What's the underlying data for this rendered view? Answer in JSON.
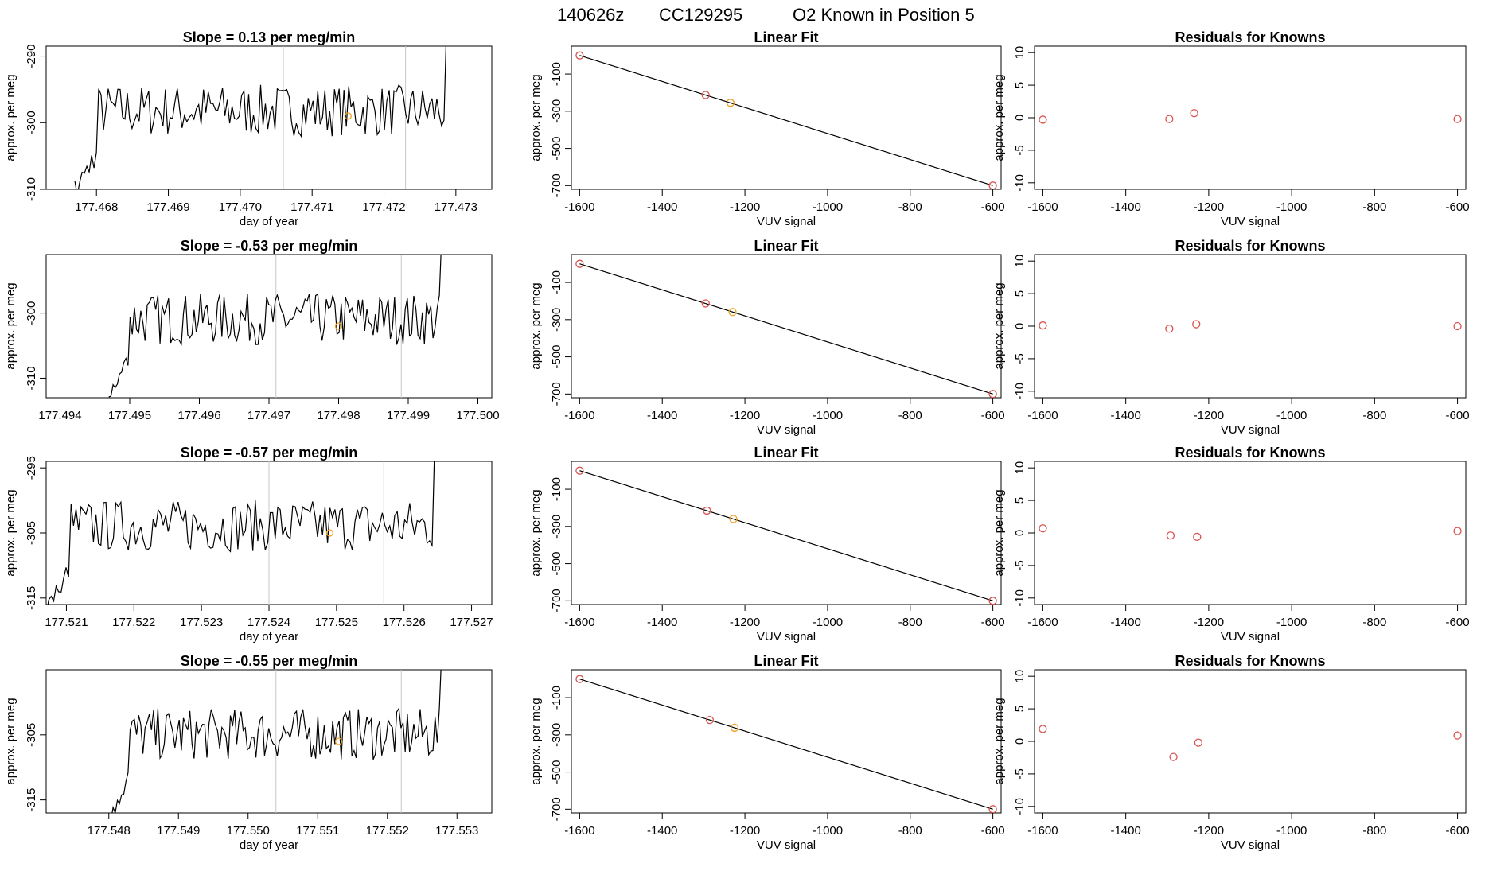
{
  "figure": {
    "title_parts": [
      "140626z",
      "CC129295",
      "O2 Known in Position  5"
    ]
  },
  "colors": {
    "line": "#000000",
    "marker_red": "#d9534f",
    "marker_orange": "#f0a020",
    "vline": "#c8c8c8"
  },
  "chart_data": [
    {
      "type": "line",
      "row": 1,
      "panel": "timeseries",
      "title": "Slope =  0.13  per meg/min",
      "xlabel": "day of year",
      "ylabel": "approx. per meg",
      "xlim": [
        177.4673,
        177.4735
      ],
      "ylim": [
        -310,
        -288.5
      ],
      "xticks": [
        177.468,
        177.469,
        177.47,
        177.471,
        177.472,
        177.473
      ],
      "xtick_labels": [
        "177.468",
        "177.469",
        "177.470",
        "177.471",
        "177.472",
        "177.473"
      ],
      "yticks": [
        -310,
        -300,
        -290
      ],
      "ytick_labels": [
        "-310",
        "-300",
        "-290"
      ],
      "vlines": [
        177.4706,
        177.4723
      ],
      "series_start": 177.4677,
      "series_end": 177.473,
      "highlight": {
        "x": 177.4715,
        "y": -299
      }
    },
    {
      "type": "scatter",
      "row": 1,
      "panel": "fit",
      "title": "Linear Fit",
      "xlabel": "VUV signal",
      "ylabel": "approx. per meg",
      "xlim": [
        -1620,
        -580
      ],
      "ylim": [
        -720,
        50
      ],
      "xticks": [
        -1600,
        -1400,
        -1200,
        -1000,
        -800,
        -600
      ],
      "xtick_labels": [
        "-1600",
        "-1400",
        "-1200",
        "-1000",
        "-800",
        "-600"
      ],
      "yticks": [
        -100,
        -300,
        -500,
        -700
      ],
      "ytick_labels": [
        "-100",
        "-300",
        "-500",
        "-700"
      ],
      "line": [
        [
          -1600,
          0
        ],
        [
          -600,
          -700
        ]
      ],
      "points": [
        {
          "x": -1600,
          "y": 0,
          "color": "red"
        },
        {
          "x": -1295,
          "y": -213,
          "color": "red"
        },
        {
          "x": -1235,
          "y": -255,
          "color": "orange"
        },
        {
          "x": -600,
          "y": -700,
          "color": "red"
        }
      ]
    },
    {
      "type": "scatter",
      "row": 1,
      "panel": "residuals",
      "title": "Residuals for Knowns",
      "xlabel": "VUV signal",
      "ylabel": "approx. per meg",
      "xlim": [
        -1620,
        -580
      ],
      "ylim": [
        -11,
        11
      ],
      "xticks": [
        -1600,
        -1400,
        -1200,
        -1000,
        -800,
        -600
      ],
      "xtick_labels": [
        "-1600",
        "-1400",
        "-1200",
        "-1000",
        "-800",
        "-600"
      ],
      "yticks": [
        -10,
        -5,
        0,
        5,
        10
      ],
      "ytick_labels": [
        "-10",
        "-5",
        "0",
        "5",
        "10"
      ],
      "points": [
        {
          "x": -1600,
          "y": -0.3,
          "color": "red"
        },
        {
          "x": -1295,
          "y": -0.2,
          "color": "red"
        },
        {
          "x": -1235,
          "y": 0.7,
          "color": "red"
        },
        {
          "x": -600,
          "y": -0.2,
          "color": "red"
        }
      ]
    },
    {
      "type": "line",
      "row": 2,
      "panel": "timeseries",
      "title": "Slope =  -0.53  per meg/min",
      "xlabel": "",
      "ylabel": "approx. per meg",
      "xlim": [
        177.4938,
        177.5002
      ],
      "ylim": [
        -313,
        -291
      ],
      "xticks": [
        177.494,
        177.495,
        177.496,
        177.497,
        177.498,
        177.499,
        177.5
      ],
      "xtick_labels": [
        "177.494",
        "177.495",
        "177.496",
        "177.497",
        "177.498",
        "177.499",
        "177.500"
      ],
      "yticks": [
        -310,
        -300
      ],
      "ytick_labels": [
        "-310",
        "-300"
      ],
      "vlines": [
        177.4971,
        177.4989
      ],
      "series_start": 177.4947,
      "series_end": 177.4996,
      "highlight": {
        "x": 177.498,
        "y": -302
      }
    },
    {
      "type": "scatter",
      "row": 2,
      "panel": "fit",
      "title": "Linear Fit",
      "xlabel": "VUV signal",
      "ylabel": "approx. per meg",
      "xlim": [
        -1620,
        -580
      ],
      "ylim": [
        -720,
        50
      ],
      "xticks": [
        -1600,
        -1400,
        -1200,
        -1000,
        -800,
        -600
      ],
      "xtick_labels": [
        "-1600",
        "-1400",
        "-1200",
        "-1000",
        "-800",
        "-600"
      ],
      "yticks": [
        -100,
        -300,
        -500,
        -700
      ],
      "ytick_labels": [
        "-100",
        "-300",
        "-500",
        "-700"
      ],
      "line": [
        [
          -1600,
          0
        ],
        [
          -600,
          -700
        ]
      ],
      "points": [
        {
          "x": -1600,
          "y": 0,
          "color": "red"
        },
        {
          "x": -1295,
          "y": -213,
          "color": "red"
        },
        {
          "x": -1230,
          "y": -259,
          "color": "orange"
        },
        {
          "x": -600,
          "y": -700,
          "color": "red"
        }
      ]
    },
    {
      "type": "scatter",
      "row": 2,
      "panel": "residuals",
      "title": "Residuals for Knowns",
      "xlabel": "VUV signal",
      "ylabel": "approx. per meg",
      "xlim": [
        -1620,
        -580
      ],
      "ylim": [
        -11,
        11
      ],
      "xticks": [
        -1600,
        -1400,
        -1200,
        -1000,
        -800,
        -600
      ],
      "xtick_labels": [
        "-1600",
        "-1400",
        "-1200",
        "-1000",
        "-800",
        "-600"
      ],
      "yticks": [
        -10,
        -5,
        0,
        5,
        10
      ],
      "ytick_labels": [
        "-10",
        "-5",
        "0",
        "5",
        "10"
      ],
      "points": [
        {
          "x": -1600,
          "y": 0.1,
          "color": "red"
        },
        {
          "x": -1295,
          "y": -0.4,
          "color": "red"
        },
        {
          "x": -1230,
          "y": 0.3,
          "color": "red"
        },
        {
          "x": -600,
          "y": 0.0,
          "color": "red"
        }
      ]
    },
    {
      "type": "line",
      "row": 3,
      "panel": "timeseries",
      "title": "Slope =  -0.57  per meg/min",
      "xlabel": "day of year",
      "ylabel": "approx. per meg",
      "xlim": [
        177.5207,
        177.5273
      ],
      "ylim": [
        -316,
        -294
      ],
      "xticks": [
        177.521,
        177.522,
        177.523,
        177.524,
        177.525,
        177.526,
        177.527
      ],
      "xtick_labels": [
        "177.521",
        "177.522",
        "177.523",
        "177.524",
        "177.525",
        "177.526",
        "177.527"
      ],
      "yticks": [
        -315,
        -305,
        -295
      ],
      "ytick_labels": [
        "-315",
        "-305",
        "-295"
      ],
      "vlines": [
        177.524,
        177.5257
      ],
      "series_start": 177.5207,
      "series_end": 177.5266,
      "highlight": {
        "x": 177.5249,
        "y": -305
      }
    },
    {
      "type": "scatter",
      "row": 3,
      "panel": "fit",
      "title": "Linear Fit",
      "xlabel": "VUV signal",
      "ylabel": "approx. per meg",
      "xlim": [
        -1620,
        -580
      ],
      "ylim": [
        -720,
        50
      ],
      "xticks": [
        -1600,
        -1400,
        -1200,
        -1000,
        -800,
        -600
      ],
      "xtick_labels": [
        "-1600",
        "-1400",
        "-1200",
        "-1000",
        "-800",
        "-600"
      ],
      "yticks": [
        -100,
        -300,
        -500,
        -700
      ],
      "ytick_labels": [
        "-100",
        "-300",
        "-500",
        "-700"
      ],
      "line": [
        [
          -1600,
          0
        ],
        [
          -600,
          -700
        ]
      ],
      "points": [
        {
          "x": -1600,
          "y": 0,
          "color": "red"
        },
        {
          "x": -1292,
          "y": -215,
          "color": "red"
        },
        {
          "x": -1228,
          "y": -260,
          "color": "orange"
        },
        {
          "x": -600,
          "y": -700,
          "color": "red"
        }
      ]
    },
    {
      "type": "scatter",
      "row": 3,
      "panel": "residuals",
      "title": "Residuals for Knowns",
      "xlabel": "VUV signal",
      "ylabel": "approx. per meg",
      "xlim": [
        -1620,
        -580
      ],
      "ylim": [
        -11,
        11
      ],
      "xticks": [
        -1600,
        -1400,
        -1200,
        -1000,
        -800,
        -600
      ],
      "xtick_labels": [
        "-1600",
        "-1400",
        "-1200",
        "-1000",
        "-800",
        "-600"
      ],
      "yticks": [
        -10,
        -5,
        0,
        5,
        10
      ],
      "ytick_labels": [
        "-10",
        "-5",
        "0",
        "5",
        "10"
      ],
      "points": [
        {
          "x": -1600,
          "y": 0.7,
          "color": "red"
        },
        {
          "x": -1292,
          "y": -0.4,
          "color": "red"
        },
        {
          "x": -1228,
          "y": -0.6,
          "color": "red"
        },
        {
          "x": -600,
          "y": 0.3,
          "color": "red"
        }
      ]
    },
    {
      "type": "line",
      "row": 4,
      "panel": "timeseries",
      "title": "Slope =  -0.55  per meg/min",
      "xlabel": "day of year",
      "ylabel": "approx. per meg",
      "xlim": [
        177.5471,
        177.5535
      ],
      "ylim": [
        -317,
        -295
      ],
      "xticks": [
        177.548,
        177.549,
        177.55,
        177.551,
        177.552,
        177.553
      ],
      "xtick_labels": [
        "177.548",
        "177.549",
        "177.550",
        "177.551",
        "177.552",
        "177.553"
      ],
      "yticks": [
        -315,
        -305
      ],
      "ytick_labels": [
        "-315",
        "-305"
      ],
      "vlines": [
        177.5504,
        177.5522
      ],
      "series_start": 177.548,
      "series_end": 177.5529,
      "highlight": {
        "x": 177.5513,
        "y": -306
      }
    },
    {
      "type": "scatter",
      "row": 4,
      "panel": "fit",
      "title": "Linear Fit",
      "xlabel": "VUV signal",
      "ylabel": "approx. per meg",
      "xlim": [
        -1620,
        -580
      ],
      "ylim": [
        -720,
        50
      ],
      "xticks": [
        -1600,
        -1400,
        -1200,
        -1000,
        -800,
        -600
      ],
      "xtick_labels": [
        "-1600",
        "-1400",
        "-1200",
        "-1000",
        "-800",
        "-600"
      ],
      "yticks": [
        -100,
        -300,
        -500,
        -700
      ],
      "ytick_labels": [
        "-100",
        "-300",
        "-500",
        "-700"
      ],
      "line": [
        [
          -1600,
          0
        ],
        [
          -600,
          -700
        ]
      ],
      "points": [
        {
          "x": -1600,
          "y": 0,
          "color": "red"
        },
        {
          "x": -1285,
          "y": -220,
          "color": "red"
        },
        {
          "x": -1225,
          "y": -262,
          "color": "orange"
        },
        {
          "x": -600,
          "y": -700,
          "color": "red"
        }
      ]
    },
    {
      "type": "scatter",
      "row": 4,
      "panel": "residuals",
      "title": "Residuals for Knowns",
      "xlabel": "VUV signal",
      "ylabel": "approx. per meg",
      "xlim": [
        -1620,
        -580
      ],
      "ylim": [
        -11,
        11
      ],
      "xticks": [
        -1600,
        -1400,
        -1200,
        -1000,
        -800,
        -600
      ],
      "xtick_labels": [
        "-1600",
        "-1400",
        "-1200",
        "-1000",
        "-800",
        "-600"
      ],
      "yticks": [
        -10,
        -5,
        0,
        5,
        10
      ],
      "ytick_labels": [
        "-10",
        "-5",
        "0",
        "5",
        "10"
      ],
      "points": [
        {
          "x": -1600,
          "y": 1.9,
          "color": "red"
        },
        {
          "x": -1285,
          "y": -2.4,
          "color": "red"
        },
        {
          "x": -1225,
          "y": -0.2,
          "color": "red"
        },
        {
          "x": -600,
          "y": 0.9,
          "color": "red"
        }
      ]
    }
  ]
}
